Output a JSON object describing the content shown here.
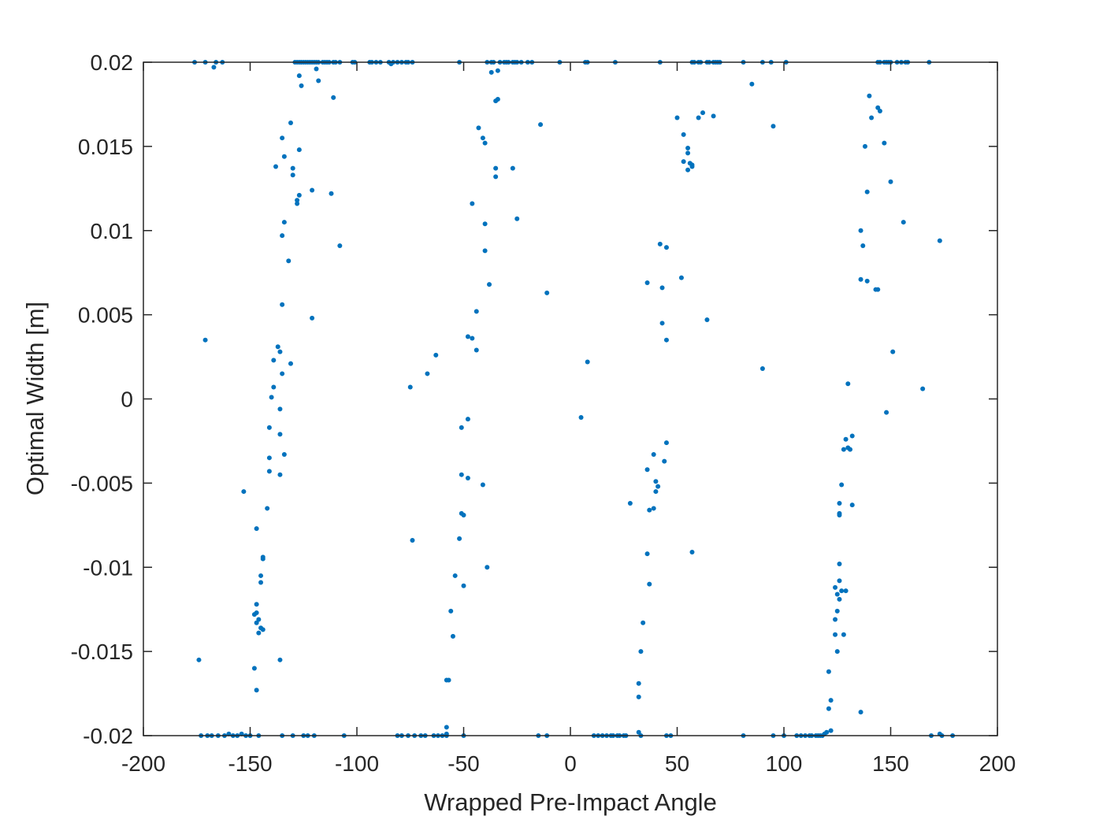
{
  "chart_data": {
    "type": "scatter",
    "title": "",
    "xlabel": "Wrapped Pre-Impact Angle",
    "ylabel": "Optimal Width [m]",
    "xlim": [
      -200,
      200
    ],
    "ylim": [
      -0.02,
      0.02
    ],
    "xticks": [
      "-200",
      "-150",
      "-100",
      "-50",
      "0",
      "50",
      "100",
      "150",
      "200"
    ],
    "yticks": [
      "-0.02",
      "-0.015",
      "-0.01",
      "-0.005",
      "0",
      "0.005",
      "0.01",
      "0.015",
      "0.02"
    ],
    "grid": false,
    "legend": "none",
    "marker_color": "#0072BD",
    "axis_color": "#262626",
    "points": [
      [
        -176,
        0.02
      ],
      [
        -171,
        0.02
      ],
      [
        -167,
        0.0197
      ],
      [
        -166,
        0.02
      ],
      [
        -163,
        0.02
      ],
      [
        -129,
        0.02
      ],
      [
        -128,
        0.02
      ],
      [
        -127,
        0.02
      ],
      [
        -126,
        0.02
      ],
      [
        -125,
        0.02
      ],
      [
        -124,
        0.02
      ],
      [
        -123,
        0.02
      ],
      [
        -122,
        0.02
      ],
      [
        -121,
        0.02
      ],
      [
        -120,
        0.02
      ],
      [
        -119,
        0.02
      ],
      [
        -118,
        0.02
      ],
      [
        -116,
        0.02
      ],
      [
        -115,
        0.02
      ],
      [
        -114,
        0.02
      ],
      [
        -113,
        0.02
      ],
      [
        -111,
        0.02
      ],
      [
        -110,
        0.02
      ],
      [
        -108,
        0.02
      ],
      [
        -102,
        0.02
      ],
      [
        -101,
        0.02
      ],
      [
        -94,
        0.02
      ],
      [
        -93,
        0.02
      ],
      [
        -91,
        0.02
      ],
      [
        -89,
        0.02
      ],
      [
        -85,
        0.02
      ],
      [
        -84,
        0.0199
      ],
      [
        -83,
        0.02
      ],
      [
        -81,
        0.02
      ],
      [
        -79,
        0.02
      ],
      [
        -77,
        0.02
      ],
      [
        -76,
        0.02
      ],
      [
        -74,
        0.02
      ],
      [
        -52,
        0.02
      ],
      [
        -39,
        0.02
      ],
      [
        -37,
        0.02
      ],
      [
        -36,
        0.02
      ],
      [
        -33,
        0.02
      ],
      [
        -31,
        0.02
      ],
      [
        -30,
        0.02
      ],
      [
        -29,
        0.02
      ],
      [
        -27,
        0.02
      ],
      [
        -26,
        0.02
      ],
      [
        -25,
        0.02
      ],
      [
        -23,
        0.02
      ],
      [
        -20,
        0.02
      ],
      [
        -18,
        0.02
      ],
      [
        -5,
        0.02
      ],
      [
        7,
        0.02
      ],
      [
        8,
        0.02
      ],
      [
        21,
        0.02
      ],
      [
        42,
        0.02
      ],
      [
        57,
        0.02
      ],
      [
        58,
        0.02
      ],
      [
        60,
        0.02
      ],
      [
        61,
        0.02
      ],
      [
        64,
        0.02
      ],
      [
        65,
        0.02
      ],
      [
        67,
        0.02
      ],
      [
        68,
        0.02
      ],
      [
        69,
        0.02
      ],
      [
        70,
        0.02
      ],
      [
        81,
        0.02
      ],
      [
        90,
        0.02
      ],
      [
        94,
        0.02
      ],
      [
        101,
        0.02
      ],
      [
        144,
        0.02
      ],
      [
        145,
        0.02
      ],
      [
        147,
        0.02
      ],
      [
        148,
        0.02
      ],
      [
        149,
        0.02
      ],
      [
        150,
        0.02
      ],
      [
        153,
        0.02
      ],
      [
        155,
        0.02
      ],
      [
        157,
        0.02
      ],
      [
        158,
        0.02
      ],
      [
        168,
        0.02
      ],
      [
        -127,
        0.0192
      ],
      [
        -126,
        0.0186
      ],
      [
        -119,
        0.0196
      ],
      [
        -118,
        0.0189
      ],
      [
        -111,
        0.0179
      ],
      [
        -131,
        0.0164
      ],
      [
        -135,
        0.0155
      ],
      [
        -134,
        0.0144
      ],
      [
        -127,
        0.0148
      ],
      [
        -130,
        0.0137
      ],
      [
        -130,
        0.0133
      ],
      [
        -138,
        0.0138
      ],
      [
        -127,
        0.0121
      ],
      [
        -128,
        0.0118
      ],
      [
        -128,
        0.0116
      ],
      [
        -121,
        0.0124
      ],
      [
        -112,
        0.0122
      ],
      [
        -134,
        0.0105
      ],
      [
        -135,
        0.0097
      ],
      [
        -108,
        0.0091
      ],
      [
        -132,
        0.0082
      ],
      [
        -135,
        0.0056
      ],
      [
        -121,
        0.0048
      ],
      [
        -171,
        0.0035
      ],
      [
        -137,
        0.0031
      ],
      [
        -136,
        0.0028
      ],
      [
        -139,
        0.0023
      ],
      [
        -131,
        0.0021
      ],
      [
        -135,
        0.0015
      ],
      [
        -139,
        0.0007
      ],
      [
        -140,
        0.0001
      ],
      [
        -136,
        -0.0006
      ],
      [
        -141,
        -0.0017
      ],
      [
        -136,
        -0.0021
      ],
      [
        -134,
        -0.0033
      ],
      [
        -141,
        -0.0035
      ],
      [
        -136,
        -0.0045
      ],
      [
        -141,
        -0.0043
      ],
      [
        -153,
        -0.0055
      ],
      [
        -142,
        -0.0065
      ],
      [
        -147,
        -0.0077
      ],
      [
        -144,
        -0.0094
      ],
      [
        -144,
        -0.0095
      ],
      [
        -145,
        -0.0105
      ],
      [
        -145,
        -0.0109
      ],
      [
        -147,
        -0.0122
      ],
      [
        -147,
        -0.0127
      ],
      [
        -148,
        -0.0128
      ],
      [
        -146,
        -0.0131
      ],
      [
        -147,
        -0.0133
      ],
      [
        -145,
        -0.0136
      ],
      [
        -144,
        -0.0137
      ],
      [
        -146,
        -0.0139
      ],
      [
        -136,
        -0.0155
      ],
      [
        -174,
        -0.0155
      ],
      [
        -148,
        -0.016
      ],
      [
        -147,
        -0.0173
      ],
      [
        -173,
        -0.02
      ],
      [
        -170,
        -0.02
      ],
      [
        -168,
        -0.02
      ],
      [
        -165,
        -0.02
      ],
      [
        -162,
        -0.02
      ],
      [
        -160,
        -0.0199
      ],
      [
        -158,
        -0.02
      ],
      [
        -156,
        -0.02
      ],
      [
        -154,
        -0.0199
      ],
      [
        -152,
        -0.02
      ],
      [
        -150,
        -0.02
      ],
      [
        -146,
        -0.02
      ],
      [
        -135,
        -0.02
      ],
      [
        -130,
        -0.02
      ],
      [
        -125,
        -0.02
      ],
      [
        -123,
        -0.02
      ],
      [
        -120,
        -0.02
      ],
      [
        -106,
        -0.02
      ],
      [
        -81,
        -0.02
      ],
      [
        -79,
        -0.02
      ],
      [
        -76,
        -0.02
      ],
      [
        -73,
        -0.02
      ],
      [
        -70,
        -0.02
      ],
      [
        -68,
        -0.02
      ],
      [
        -64,
        -0.02
      ],
      [
        -62,
        -0.02
      ],
      [
        -60,
        -0.02
      ],
      [
        -58,
        -0.02
      ],
      [
        -58,
        -0.0195
      ],
      [
        -50,
        -0.02
      ],
      [
        -37,
        0.0194
      ],
      [
        -34,
        0.0195
      ],
      [
        -35,
        0.0177
      ],
      [
        -34,
        0.0178
      ],
      [
        -43,
        0.0161
      ],
      [
        -41,
        0.0155
      ],
      [
        -40,
        0.0152
      ],
      [
        -35,
        0.0137
      ],
      [
        -35,
        0.0132
      ],
      [
        -27,
        0.0137
      ],
      [
        -46,
        0.0116
      ],
      [
        -25,
        0.0107
      ],
      [
        -40,
        0.0104
      ],
      [
        -40,
        0.0088
      ],
      [
        -38,
        0.0068
      ],
      [
        -11,
        0.0063
      ],
      [
        -44,
        0.0052
      ],
      [
        -48,
        0.0037
      ],
      [
        -46,
        0.0036
      ],
      [
        -44,
        0.0029
      ],
      [
        -63,
        0.0026
      ],
      [
        -67,
        0.0015
      ],
      [
        -75,
        0.0007
      ],
      [
        -14,
        0.0163
      ],
      [
        -48,
        -0.0012
      ],
      [
        -51,
        -0.0017
      ],
      [
        -51,
        -0.0045
      ],
      [
        -48,
        -0.0047
      ],
      [
        -41,
        -0.0051
      ],
      [
        -51,
        -0.0068
      ],
      [
        -50,
        -0.0069
      ],
      [
        -52,
        -0.0083
      ],
      [
        -74,
        -0.0084
      ],
      [
        -39,
        -0.01
      ],
      [
        -54,
        -0.0105
      ],
      [
        -50,
        -0.0111
      ],
      [
        -56,
        -0.0126
      ],
      [
        -55,
        -0.0141
      ],
      [
        -58,
        -0.0167
      ],
      [
        -57,
        -0.0167
      ],
      [
        -15,
        -0.02
      ],
      [
        -11,
        -0.02
      ],
      [
        -58,
        -0.0199
      ],
      [
        5,
        -0.0011
      ],
      [
        8,
        0.0022
      ],
      [
        50,
        0.0167
      ],
      [
        53,
        0.0157
      ],
      [
        55,
        0.0149
      ],
      [
        55,
        0.0146
      ],
      [
        53,
        0.0141
      ],
      [
        56,
        0.014
      ],
      [
        57,
        0.0138
      ],
      [
        55,
        0.0136
      ],
      [
        57,
        0.0139
      ],
      [
        60,
        0.0167
      ],
      [
        62,
        0.017
      ],
      [
        67,
        0.0168
      ],
      [
        85,
        0.0187
      ],
      [
        95,
        0.0162
      ],
      [
        42,
        0.0092
      ],
      [
        45,
        0.009
      ],
      [
        52,
        0.0072
      ],
      [
        36,
        0.0069
      ],
      [
        43,
        0.0066
      ],
      [
        64,
        0.0047
      ],
      [
        43,
        0.0045
      ],
      [
        45,
        0.0035
      ],
      [
        90,
        0.0018
      ],
      [
        45,
        -0.0026
      ],
      [
        39,
        -0.0033
      ],
      [
        44,
        -0.0037
      ],
      [
        36,
        -0.0042
      ],
      [
        40,
        -0.0049
      ],
      [
        41,
        -0.0052
      ],
      [
        40,
        -0.0055
      ],
      [
        28,
        -0.0062
      ],
      [
        39,
        -0.0065
      ],
      [
        37,
        -0.0066
      ],
      [
        36,
        -0.0092
      ],
      [
        57,
        -0.0091
      ],
      [
        37,
        -0.011
      ],
      [
        34,
        -0.0133
      ],
      [
        33,
        -0.015
      ],
      [
        32,
        -0.0169
      ],
      [
        32,
        -0.0177
      ],
      [
        32,
        -0.0198
      ],
      [
        33,
        -0.02
      ],
      [
        11,
        -0.02
      ],
      [
        13,
        -0.02
      ],
      [
        15,
        -0.02
      ],
      [
        17,
        -0.02
      ],
      [
        19,
        -0.02
      ],
      [
        20,
        -0.02
      ],
      [
        22,
        -0.02
      ],
      [
        23,
        -0.02
      ],
      [
        25,
        -0.02
      ],
      [
        26,
        -0.02
      ],
      [
        45,
        -0.02
      ],
      [
        47,
        -0.02
      ],
      [
        81,
        -0.02
      ],
      [
        95,
        -0.02
      ],
      [
        100,
        -0.02
      ],
      [
        106,
        -0.02
      ],
      [
        108,
        -0.02
      ],
      [
        110,
        -0.02
      ],
      [
        112,
        -0.02
      ],
      [
        113,
        -0.02
      ],
      [
        115,
        -0.02
      ],
      [
        116,
        -0.02
      ],
      [
        117,
        -0.02
      ],
      [
        118,
        -0.02
      ],
      [
        119,
        -0.0199
      ],
      [
        120,
        -0.0198
      ],
      [
        122,
        -0.0197
      ],
      [
        121,
        -0.0184
      ],
      [
        122,
        -0.0179
      ],
      [
        121,
        -0.0162
      ],
      [
        136,
        -0.0186
      ],
      [
        125,
        -0.015
      ],
      [
        124,
        -0.014
      ],
      [
        128,
        -0.014
      ],
      [
        124,
        -0.0131
      ],
      [
        125,
        -0.0126
      ],
      [
        126,
        -0.0119
      ],
      [
        124,
        -0.0112
      ],
      [
        125,
        -0.0116
      ],
      [
        127,
        -0.0114
      ],
      [
        129,
        -0.0114
      ],
      [
        126,
        -0.0108
      ],
      [
        126,
        -0.0098
      ],
      [
        126,
        -0.0068
      ],
      [
        126,
        -0.0069
      ],
      [
        126,
        -0.0062
      ],
      [
        132,
        -0.0063
      ],
      [
        127,
        -0.0051
      ],
      [
        128,
        -0.003
      ],
      [
        130,
        -0.0029
      ],
      [
        131,
        -0.003
      ],
      [
        129,
        -0.0024
      ],
      [
        132,
        -0.0022
      ],
      [
        130,
        0.0009
      ],
      [
        148,
        -0.0008
      ],
      [
        151,
        0.0028
      ],
      [
        165,
        0.0006
      ],
      [
        173,
        0.0094
      ],
      [
        156,
        0.0105
      ],
      [
        143,
        0.0065
      ],
      [
        144,
        0.0065
      ],
      [
        139,
        0.007
      ],
      [
        136,
        0.0071
      ],
      [
        137,
        0.0091
      ],
      [
        136,
        0.01
      ],
      [
        139,
        0.0123
      ],
      [
        150,
        0.0129
      ],
      [
        138,
        0.015
      ],
      [
        147,
        0.0152
      ],
      [
        141,
        0.0167
      ],
      [
        144,
        0.0173
      ],
      [
        145,
        0.0171
      ],
      [
        140,
        0.018
      ],
      [
        169,
        -0.02
      ],
      [
        173,
        -0.0199
      ],
      [
        174,
        -0.02
      ],
      [
        179,
        -0.02
      ]
    ]
  }
}
